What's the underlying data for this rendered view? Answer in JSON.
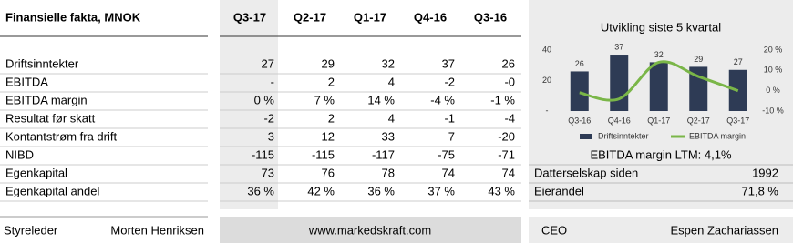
{
  "title": "Finansielle fakta, MNOK",
  "table": {
    "columns": [
      "Q3-17",
      "Q2-17",
      "Q1-17",
      "Q4-16",
      "Q3-16"
    ],
    "rows": [
      {
        "label": "Driftsinntekter",
        "values": [
          "27",
          "29",
          "32",
          "37",
          "26"
        ]
      },
      {
        "label": "EBITDA",
        "values": [
          "-",
          "2",
          "4",
          "-2",
          "-0"
        ]
      },
      {
        "label": "EBITDA margin",
        "values": [
          "0 %",
          "7 %",
          "14 %",
          "-4 %",
          "-1 %"
        ]
      },
      {
        "label": "Resultat før skatt",
        "values": [
          "-2",
          "2",
          "4",
          "-1",
          "-4"
        ]
      },
      {
        "label": "Kontantstrøm fra drift",
        "values": [
          "3",
          "12",
          "33",
          "7",
          "-20"
        ]
      },
      {
        "label": "NIBD",
        "values": [
          "-115",
          "-115",
          "-117",
          "-75",
          "-71"
        ]
      },
      {
        "label": "Egenkapital",
        "values": [
          "73",
          "76",
          "78",
          "74",
          "74"
        ]
      },
      {
        "label": "Egenkapital andel",
        "values": [
          "36 %",
          "42 %",
          "36 %",
          "37 %",
          "43 %"
        ]
      }
    ]
  },
  "chart_data": {
    "type": "bar-line",
    "title": "Utvikling siste 5 kvartal",
    "categories": [
      "Q3-16",
      "Q4-16",
      "Q1-17",
      "Q2-17",
      "Q3-17"
    ],
    "series": [
      {
        "name": "Driftsinntekter",
        "type": "bar",
        "color": "#2e3b55",
        "values": [
          26,
          37,
          32,
          29,
          27
        ]
      },
      {
        "name": "EBITDA margin",
        "type": "line",
        "axis": "y2",
        "color": "#7ab648",
        "values": [
          -1,
          -4,
          14,
          7,
          0
        ]
      }
    ],
    "ylim": [
      0,
      40
    ],
    "yticks": [
      {
        "value": 0,
        "label": "-"
      },
      20,
      40
    ],
    "y2lim": [
      -10,
      20
    ],
    "y2ticks": [
      {
        "value": -10,
        "label": "-10 %"
      },
      {
        "value": 0,
        "label": "0 %"
      },
      {
        "value": 10,
        "label": "10 %"
      },
      {
        "value": 20,
        "label": "20 %"
      }
    ],
    "legend": "bottom",
    "data_labels": true
  },
  "ltm": "EBITDA margin LTM: 4,1%",
  "facts": [
    {
      "label": "Datterselskap siden",
      "value": "1992"
    },
    {
      "label": "Eierandel",
      "value": "71,8 %"
    }
  ],
  "footer": {
    "chair_label": "Styreleder",
    "chair": "Morten Henriksen",
    "website": "www.markedskraft.com",
    "ceo_label": "CEO",
    "ceo": "Espen Zachariassen"
  }
}
